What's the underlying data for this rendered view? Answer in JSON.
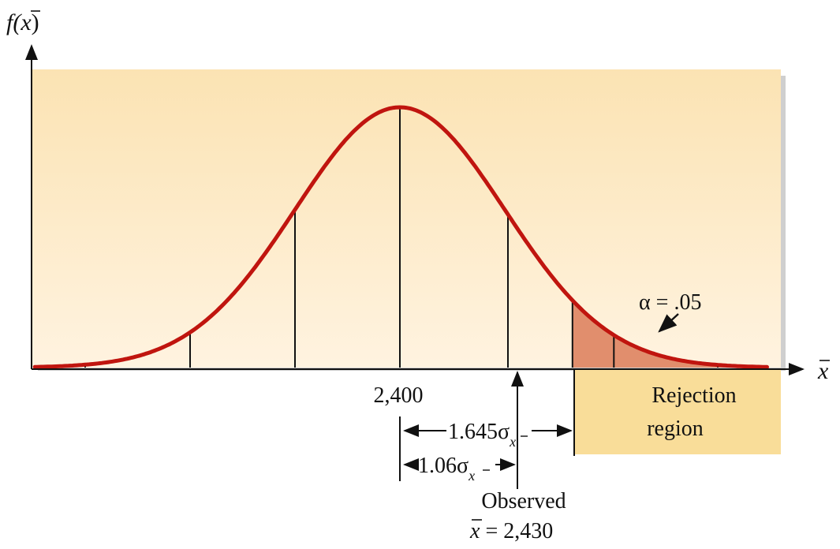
{
  "colors": {
    "panel_top": "#fbe3b3",
    "panel_bottom": "#fff3e0",
    "curve": "#c0150f",
    "tail_fill": "#e18e6d",
    "rejection_box": "#f9dd99",
    "ink": "#111111"
  },
  "labels": {
    "y_axis": {
      "f": "f(",
      "xbar": "x",
      "close": ")"
    },
    "x_axis": "x",
    "mean": "2,400",
    "alpha": "α = .05",
    "rejection_line1": "Rejection",
    "rejection_line2": "region",
    "crit_dist": {
      "value": "1.645σ",
      "sub": "x"
    },
    "obs_dist": {
      "value": "1.06σ",
      "sub": "x"
    },
    "observed_line1": "Observed",
    "observed_line2": {
      "xbar": "x",
      "rest": " = 2,430"
    }
  },
  "chart_data": {
    "type": "area",
    "distribution": "normal",
    "mean": 2400,
    "observed": 2430,
    "alpha": 0.05,
    "critical_z": 1.645,
    "observed_z": 1.06,
    "tail": "upper"
  }
}
